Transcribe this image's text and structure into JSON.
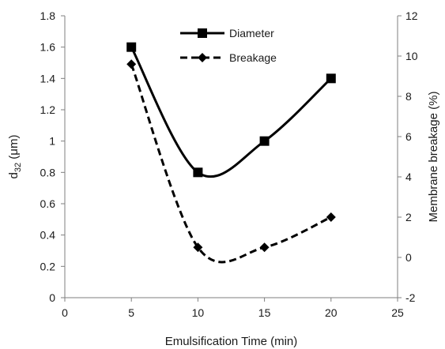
{
  "chart_data": {
    "type": "line",
    "xlabel": "Emulsification Time (min)",
    "ylabel_prefix": "d",
    "ylabel_sub": "32",
    "ylabel_suffix": " (μm)",
    "y2label": "Membrane breakage (%)",
    "xlim": [
      0,
      25
    ],
    "ylim": [
      0,
      1.8
    ],
    "y2lim": [
      -2,
      12
    ],
    "x_ticks": [
      "0",
      "5",
      "10",
      "15",
      "20",
      "25"
    ],
    "x_tick_values": [
      0,
      5,
      10,
      15,
      20,
      25
    ],
    "y_ticks": [
      "0",
      "0.2",
      "0.4",
      "0.6",
      "0.8",
      "1",
      "1.2",
      "1.4",
      "1.6",
      "1.8"
    ],
    "y_tick_values": [
      0,
      0.2,
      0.4,
      0.6,
      0.8,
      1.0,
      1.2,
      1.4,
      1.6,
      1.8
    ],
    "y2_ticks": [
      "-2",
      "0",
      "2",
      "4",
      "6",
      "8",
      "10",
      "12"
    ],
    "y2_tick_values": [
      -2,
      0,
      2,
      4,
      6,
      8,
      10,
      12
    ],
    "grid": false,
    "legend_position": "top-center",
    "series": [
      {
        "name": "Diameter",
        "axis": "left",
        "x": [
          5,
          10,
          15,
          20
        ],
        "y": [
          1.6,
          0.8,
          1.0,
          1.4
        ],
        "marker": "square",
        "line_style": "solid",
        "color": "#000000"
      },
      {
        "name": "Breakage",
        "axis": "right",
        "x": [
          5,
          10,
          15,
          20
        ],
        "y": [
          9.6,
          0.5,
          0.5,
          2.0
        ],
        "marker": "diamond",
        "line_style": "dashed",
        "color": "#000000"
      }
    ]
  }
}
